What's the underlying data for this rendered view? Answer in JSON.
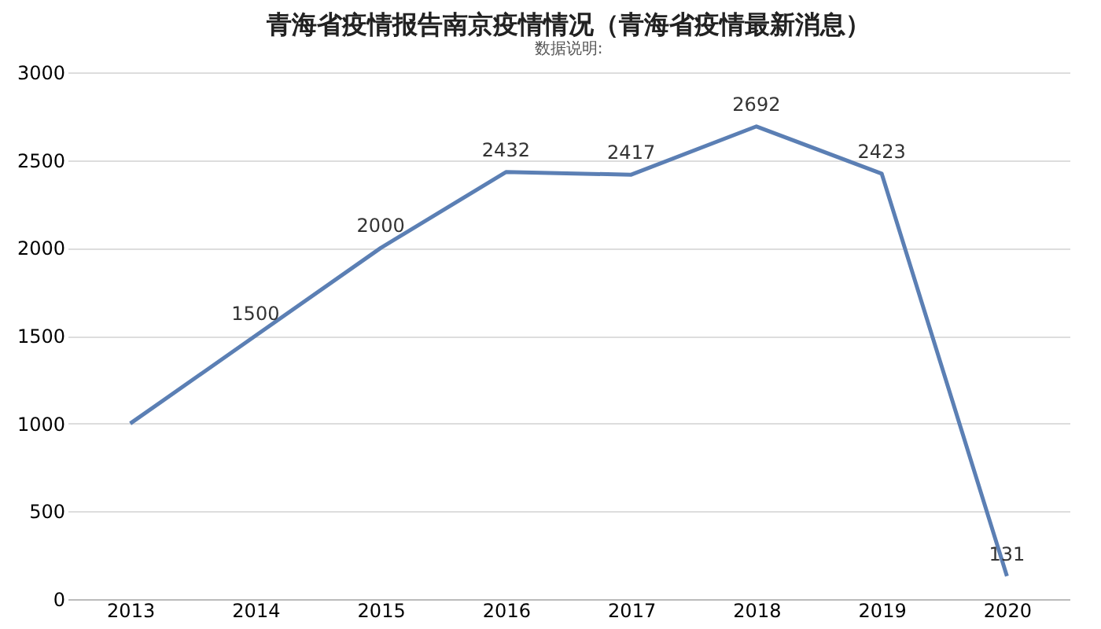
{
  "chart_data": {
    "type": "line",
    "title": "青海省疫情报告南京疫情情况（青海省疫情最新消息）",
    "categories": [
      "2013",
      "2014",
      "2015",
      "2016",
      "2017",
      "2018",
      "2019",
      "2020"
    ],
    "series": [
      {
        "color": "#5b7fb4",
        "values": [
          1000,
          1500,
          2000,
          2432,
          2417,
          2692,
          2423,
          131
        ],
        "value_labels": [
          null,
          "1500",
          "2000",
          "2432",
          "2417",
          "2692",
          "2423",
          "131"
        ]
      }
    ],
    "ylim": [
      0,
      3000
    ],
    "yticks": [
      0,
      500,
      1000,
      1500,
      2000,
      2500,
      3000
    ],
    "grid": "y",
    "marker": "none",
    "annotations": [
      "数据说明:"
    ]
  }
}
